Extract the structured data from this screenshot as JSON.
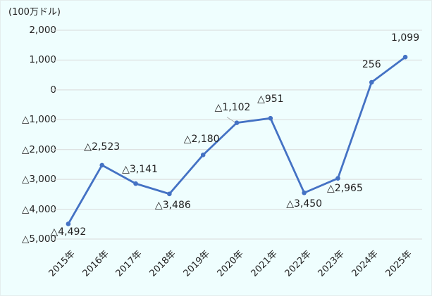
{
  "chart_data": {
    "type": "line",
    "title": "",
    "unit_label": "(100万ドル)",
    "xlabel": "",
    "ylabel": "(100万ドル)",
    "categories": [
      "2015年",
      "2016年",
      "2017年",
      "2018年",
      "2019年",
      "2020年",
      "2021年",
      "2022年",
      "2023年",
      "2024年",
      "2025年"
    ],
    "series": [
      {
        "name": "",
        "color": "#4472c4",
        "values": [
          -4492,
          -2523,
          -3141,
          -3486,
          -2180,
          -1102,
          -951,
          -3450,
          -2965,
          256,
          1099
        ]
      }
    ],
    "data_labels": [
      "△4,492",
      "△2,523",
      "△3,141",
      "△3,486",
      "△2,180",
      "△1,102",
      "△951",
      "△3,450",
      "△2,965",
      "256",
      "1,099"
    ],
    "ylim": [
      -5000,
      2000
    ],
    "yticks": [
      2000,
      1000,
      0,
      -1000,
      -2000,
      -3000,
      -4000,
      -5000
    ],
    "ytick_labels": [
      "2,000",
      "1,000",
      "0",
      "△1,000",
      "△2,000",
      "△3,000",
      "△4,000",
      "△5,000"
    ],
    "grid": true,
    "legend": "none"
  }
}
